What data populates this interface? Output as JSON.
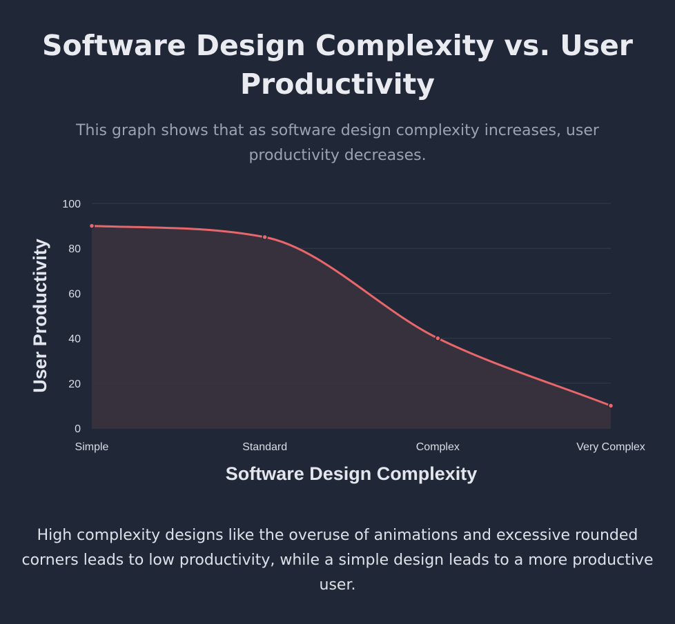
{
  "page": {
    "title": "Software Design Complexity vs. User Productivity",
    "subtitle": "This graph shows that as software design complexity increases, user productivity decreases.",
    "caption": "High complexity designs like the overuse of animations and excessive rounded corners leads to low productivity, while a simple design leads to a more productive user."
  },
  "colors": {
    "background": "#202838",
    "line": "#e8676a",
    "fill": "#3a323f",
    "grid": "#343c4b"
  },
  "chart_data": {
    "type": "line",
    "categories": [
      "Simple",
      "Standard",
      "Complex",
      "Very Complex"
    ],
    "series": [
      {
        "values": [
          90,
          85,
          40,
          10
        ]
      }
    ],
    "xlabel": "Software Design Complexity",
    "ylabel": "User Productivity",
    "ylim": [
      0,
      100
    ],
    "yticks": [
      0,
      20,
      40,
      60,
      80,
      100
    ],
    "grid": true,
    "area_fill": true,
    "smooth": true
  }
}
